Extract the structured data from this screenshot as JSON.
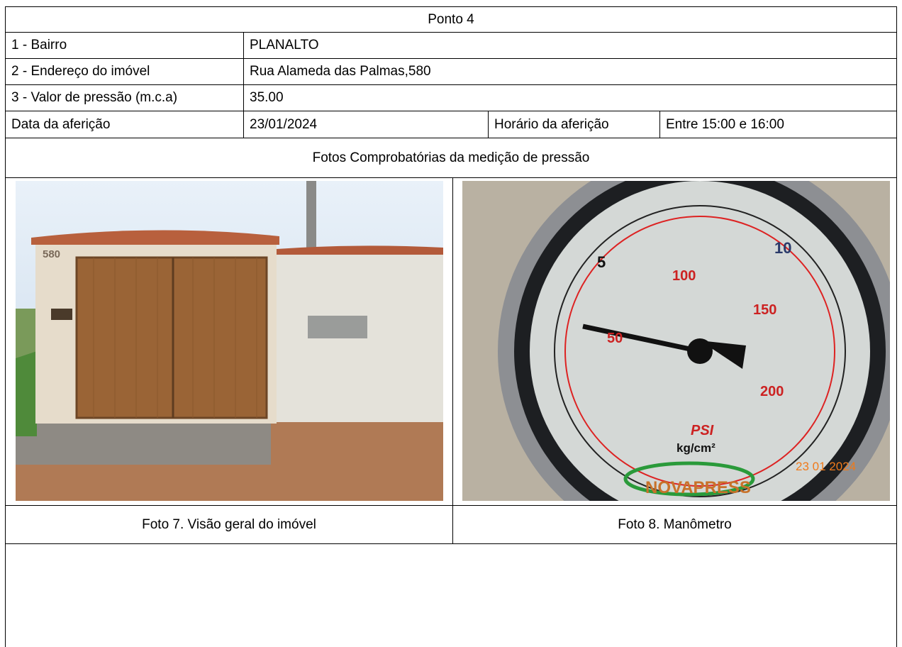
{
  "header": {
    "title": "Ponto 4"
  },
  "table": {
    "rows": [
      [
        "1 - Bairro",
        "PLANALTO"
      ],
      [
        "2 - Endereço do imóvel",
        "Rua Alameda das Palmas,580"
      ],
      [
        "3 - Valor de pressão (m.c.a)",
        "35.00"
      ],
      [
        "Data da aferição",
        "23/01/2024",
        "Horário da aferição",
        "Entre 15:00 e 16:00"
      ]
    ]
  },
  "photos_heading": "Fotos Comprobatórias da medição de pressão",
  "photos": [
    {
      "caption": "Foto 7. Visão geral do imóvel",
      "texts": [
        "580"
      ]
    },
    {
      "caption": "Foto 8. Manômetro",
      "texts": [
        "5",
        "10",
        "50",
        "100",
        "150",
        "200",
        "PSI",
        "kg/cm²",
        "NOVAPRESS",
        "23 01 2024"
      ]
    }
  ]
}
